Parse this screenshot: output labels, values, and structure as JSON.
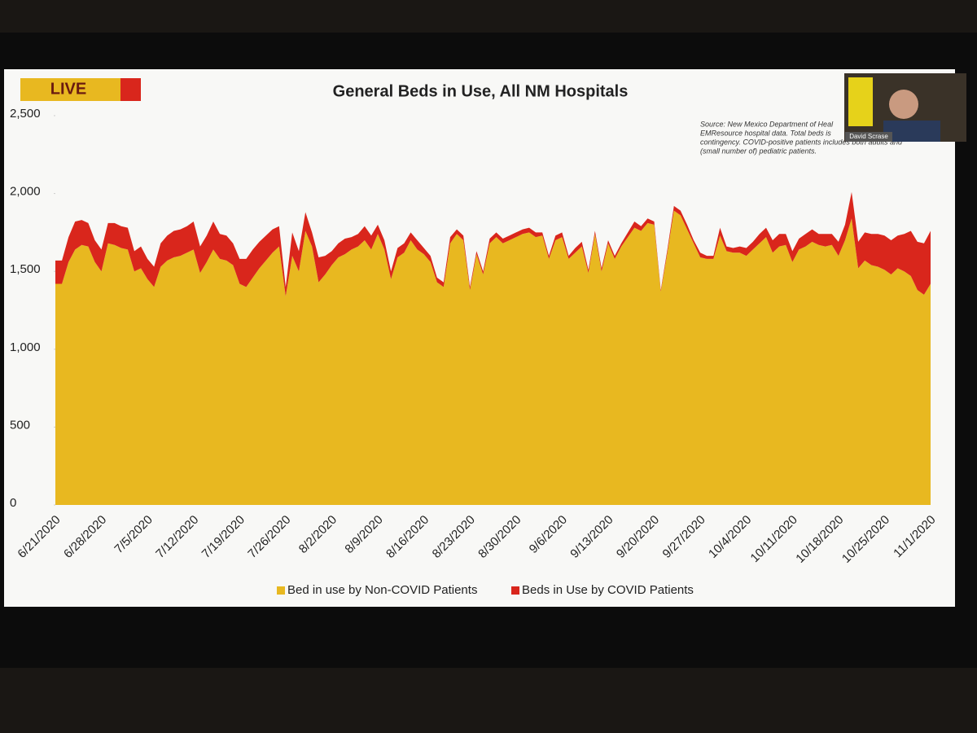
{
  "live_badge": "LIVE",
  "presenter": "David Scrase",
  "chart_data": {
    "type": "stacked_area",
    "title": "General Beds in Use, All NM Hospitals",
    "annotations": [
      "Source: New Mexico Department of Heal",
      "EMResource hospital data. Total beds is",
      "contingency. COVID-positive patients includes both adults and",
      "(small number of) pediatric patients."
    ],
    "categories": [
      "6/21/2020",
      null,
      null,
      null,
      null,
      null,
      null,
      "6/28/2020",
      null,
      null,
      null,
      null,
      null,
      null,
      "7/5/2020",
      null,
      null,
      null,
      null,
      null,
      null,
      "7/12/2020",
      null,
      null,
      null,
      null,
      null,
      null,
      "7/19/2020",
      null,
      null,
      null,
      null,
      null,
      null,
      "7/26/2020",
      null,
      null,
      null,
      null,
      null,
      null,
      "8/2/2020",
      null,
      null,
      null,
      null,
      null,
      null,
      "8/9/2020",
      null,
      null,
      null,
      null,
      null,
      null,
      "8/16/2020",
      null,
      null,
      null,
      null,
      null,
      null,
      "8/23/2020",
      null,
      null,
      null,
      null,
      null,
      null,
      "8/30/2020",
      null,
      null,
      null,
      null,
      null,
      null,
      "9/6/2020",
      null,
      null,
      null,
      null,
      null,
      null,
      "9/13/2020",
      null,
      null,
      null,
      null,
      null,
      null,
      "9/20/2020",
      null,
      null,
      null,
      null,
      null,
      null,
      "9/27/2020",
      null,
      null,
      null,
      null,
      null,
      null,
      "10/4/2020",
      null,
      null,
      null,
      null,
      null,
      null,
      "10/11/2020",
      null,
      null,
      null,
      null,
      null,
      null,
      "10/18/2020",
      null,
      null,
      null,
      null,
      null,
      null,
      "10/25/2020",
      null,
      null,
      null,
      null,
      null,
      null,
      "11/1/2020"
    ],
    "series": [
      {
        "name": "Bed in use by Non-COVID Patients",
        "color": "#e8b820",
        "values": [
          1420,
          1420,
          1560,
          1640,
          1670,
          1660,
          1560,
          1500,
          1680,
          1670,
          1650,
          1640,
          1500,
          1520,
          1450,
          1400,
          1530,
          1570,
          1590,
          1600,
          1620,
          1640,
          1490,
          1560,
          1640,
          1580,
          1570,
          1540,
          1420,
          1400,
          1460,
          1520,
          1570,
          1620,
          1660,
          1340,
          1600,
          1500,
          1760,
          1660,
          1430,
          1480,
          1540,
          1590,
          1610,
          1640,
          1660,
          1700,
          1640,
          1740,
          1640,
          1450,
          1590,
          1620,
          1700,
          1640,
          1610,
          1560,
          1430,
          1400,
          1680,
          1740,
          1700,
          1380,
          1610,
          1480,
          1680,
          1720,
          1680,
          1700,
          1720,
          1740,
          1750,
          1720,
          1730,
          1580,
          1700,
          1720,
          1580,
          1620,
          1660,
          1490,
          1740,
          1500,
          1680,
          1580,
          1660,
          1720,
          1780,
          1760,
          1810,
          1800,
          1370,
          1620,
          1890,
          1860,
          1770,
          1680,
          1590,
          1580,
          1580,
          1730,
          1630,
          1620,
          1620,
          1600,
          1640,
          1680,
          1720,
          1620,
          1660,
          1670,
          1560,
          1640,
          1660,
          1690,
          1670,
          1660,
          1670,
          1600,
          1700,
          1840,
          1520,
          1570,
          1540,
          1530,
          1510,
          1480,
          1520,
          1500,
          1470,
          1380,
          1350,
          1420
        ]
      },
      {
        "name": "Beds in Use by COVID Patients",
        "color": "#d9261c",
        "values": [
          150,
          150,
          160,
          180,
          160,
          150,
          140,
          140,
          130,
          140,
          140,
          140,
          130,
          140,
          130,
          130,
          150,
          160,
          170,
          170,
          170,
          180,
          170,
          170,
          180,
          160,
          160,
          140,
          160,
          180,
          180,
          170,
          160,
          150,
          130,
          60,
          150,
          130,
          120,
          90,
          160,
          120,
          90,
          90,
          100,
          80,
          80,
          90,
          90,
          60,
          60,
          50,
          60,
          60,
          50,
          60,
          40,
          40,
          30,
          30,
          40,
          30,
          30,
          20,
          20,
          20,
          30,
          30,
          30,
          30,
          30,
          30,
          30,
          30,
          20,
          20,
          30,
          30,
          20,
          30,
          30,
          20,
          20,
          20,
          20,
          20,
          20,
          30,
          40,
          30,
          30,
          20,
          10,
          20,
          30,
          30,
          30,
          20,
          30,
          20,
          20,
          50,
          30,
          30,
          40,
          50,
          50,
          60,
          60,
          80,
          80,
          70,
          70,
          70,
          80,
          80,
          70,
          80,
          70,
          90,
          100,
          170,
          170,
          180,
          200,
          210,
          220,
          220,
          210,
          240,
          290,
          310,
          330,
          340
        ]
      }
    ],
    "ylim": [
      0,
      2500
    ],
    "yticks": [
      0,
      500,
      {
        "value": 1000,
        "label": "1,000"
      },
      {
        "value": 1500,
        "label": "1,500"
      },
      {
        "value": 2000,
        "label": "2,000"
      },
      {
        "value": 2500,
        "label": "2,500"
      }
    ],
    "legend": "bottom"
  }
}
